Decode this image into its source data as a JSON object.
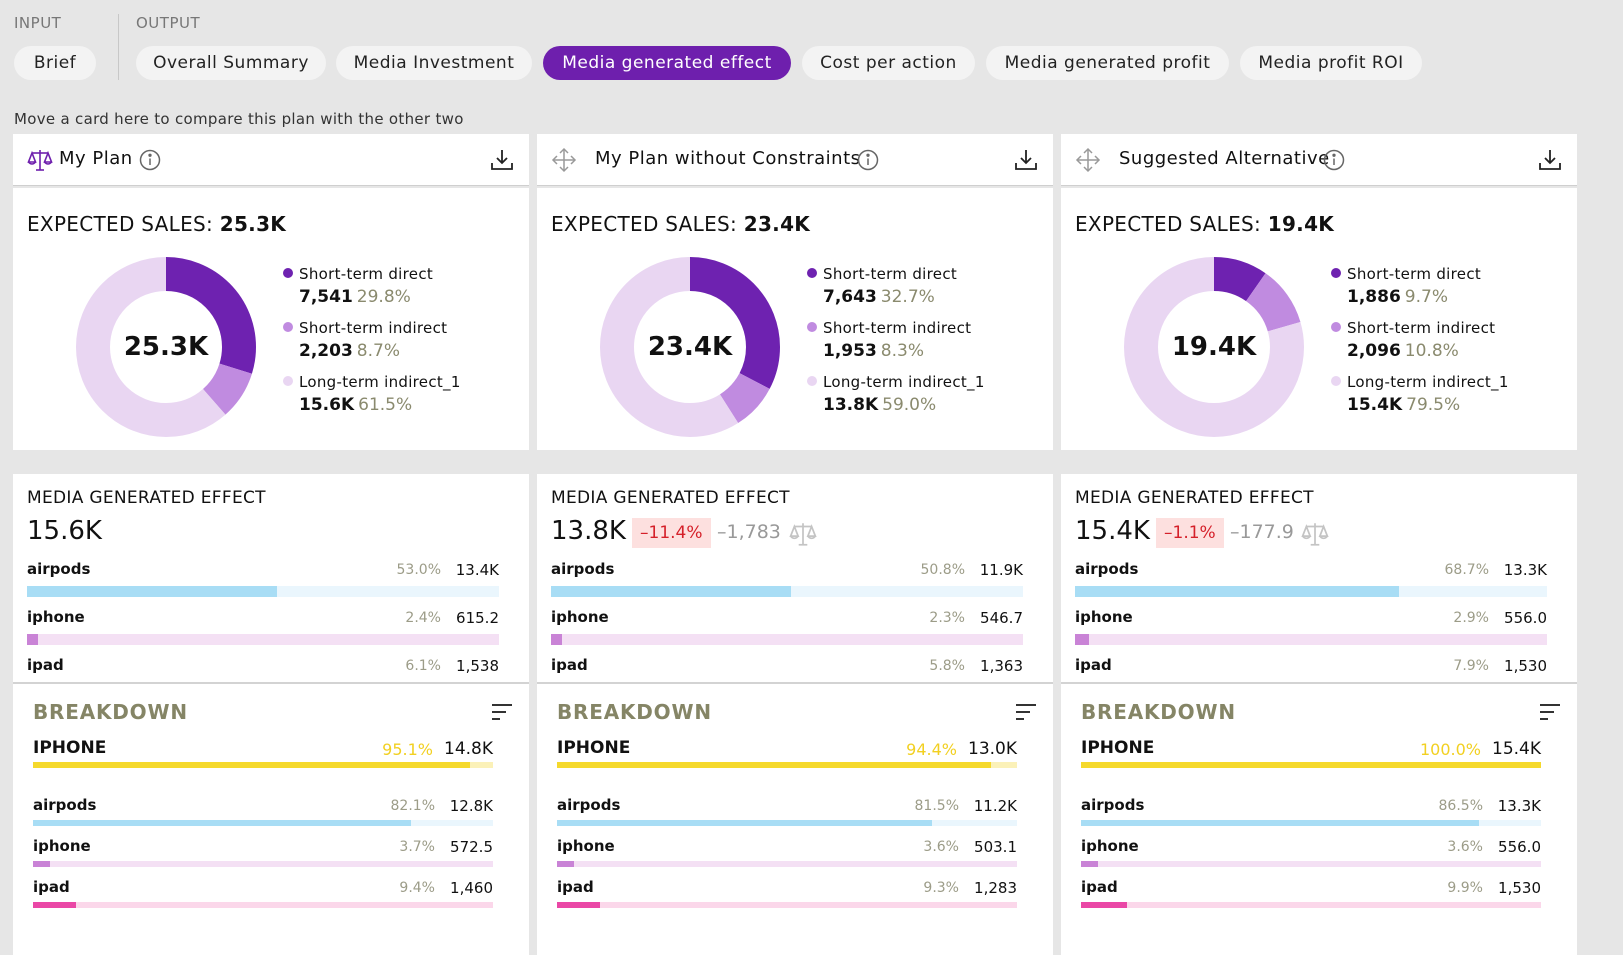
{
  "nav": {
    "input_label": "INPUT",
    "output_label": "OUTPUT",
    "tabs": [
      {
        "label": "Brief"
      },
      {
        "label": "Overall Summary"
      },
      {
        "label": "Media Investment"
      },
      {
        "label": "Media generated effect"
      },
      {
        "label": "Cost per action"
      },
      {
        "label": "Media generated profit"
      },
      {
        "label": "Media profit ROI"
      }
    ],
    "active_tab": "Media generated effect"
  },
  "hint": "Move a card here to compare this plan with the other two",
  "colors": {
    "accent": "#6e1fad",
    "short_direct": "#6e22b0",
    "short_indirect": "#c08be0",
    "long_indirect": "#e9d6f2",
    "airpods": "#a8ddf5",
    "iphone": "#c983d6",
    "ipad": "#ea47a6",
    "breakdown_header": "#f5d92c"
  },
  "plans": [
    {
      "title": "My Plan",
      "icon": "scale-icon",
      "expected_sales_label": "EXPECTED SALES:",
      "expected_sales": "25.3K",
      "donut_center": "25.3K",
      "segments": [
        {
          "name": "Short-term direct",
          "value": "7,541",
          "pct": "29.8%",
          "share": 29.8
        },
        {
          "name": "Short-term indirect",
          "value": "2,203",
          "pct": "8.7%",
          "share": 8.7
        },
        {
          "name": "Long-term indirect_1",
          "value": "15.6K",
          "pct": "61.5%",
          "share": 61.5
        }
      ],
      "mge_title": "MEDIA GENERATED EFFECT",
      "mge_value": "15.6K",
      "mge_delta": "",
      "mge_abs": "",
      "mge_rows": [
        {
          "name": "airpods",
          "pct": "53.0%",
          "value": "13.4K",
          "share": 53.0
        },
        {
          "name": "iphone",
          "pct": "2.4%",
          "value": "615.2",
          "share": 2.4
        },
        {
          "name": "ipad",
          "pct": "6.1%",
          "value": "1,538",
          "share": 6.1
        }
      ],
      "breakdown_title": "BREAKDOWN",
      "breakdown_header": {
        "name": "IPHONE",
        "pct": "95.1%",
        "value": "14.8K",
        "share": 95.1
      },
      "breakdown_rows": [
        {
          "name": "airpods",
          "pct": "82.1%",
          "value": "12.8K",
          "share": 82.1
        },
        {
          "name": "iphone",
          "pct": "3.7%",
          "value": "572.5",
          "share": 3.7
        },
        {
          "name": "ipad",
          "pct": "9.4%",
          "value": "1,460",
          "share": 9.4
        }
      ]
    },
    {
      "title": "My Plan without Constraints",
      "icon": "move-icon",
      "expected_sales_label": "EXPECTED SALES:",
      "expected_sales": "23.4K",
      "donut_center": "23.4K",
      "segments": [
        {
          "name": "Short-term direct",
          "value": "7,643",
          "pct": "32.7%",
          "share": 32.7
        },
        {
          "name": "Short-term indirect",
          "value": "1,953",
          "pct": "8.3%",
          "share": 8.3
        },
        {
          "name": "Long-term indirect_1",
          "value": "13.8K",
          "pct": "59.0%",
          "share": 59.0
        }
      ],
      "mge_title": "MEDIA GENERATED EFFECT",
      "mge_value": "13.8K",
      "mge_delta": "–11.4%",
      "mge_abs": "–1,783",
      "mge_rows": [
        {
          "name": "airpods",
          "pct": "50.8%",
          "value": "11.9K",
          "share": 50.8
        },
        {
          "name": "iphone",
          "pct": "2.3%",
          "value": "546.7",
          "share": 2.3
        },
        {
          "name": "ipad",
          "pct": "5.8%",
          "value": "1,363",
          "share": 5.8
        }
      ],
      "breakdown_title": "BREAKDOWN",
      "breakdown_header": {
        "name": "IPHONE",
        "pct": "94.4%",
        "value": "13.0K",
        "share": 94.4
      },
      "breakdown_rows": [
        {
          "name": "airpods",
          "pct": "81.5%",
          "value": "11.2K",
          "share": 81.5
        },
        {
          "name": "iphone",
          "pct": "3.6%",
          "value": "503.1",
          "share": 3.6
        },
        {
          "name": "ipad",
          "pct": "9.3%",
          "value": "1,283",
          "share": 9.3
        }
      ]
    },
    {
      "title": "Suggested Alternative",
      "icon": "move-icon",
      "expected_sales_label": "EXPECTED SALES:",
      "expected_sales": "19.4K",
      "donut_center": "19.4K",
      "segments": [
        {
          "name": "Short-term direct",
          "value": "1,886",
          "pct": "9.7%",
          "share": 9.7
        },
        {
          "name": "Short-term indirect",
          "value": "2,096",
          "pct": "10.8%",
          "share": 10.8
        },
        {
          "name": "Long-term indirect_1",
          "value": "15.4K",
          "pct": "79.5%",
          "share": 79.5
        }
      ],
      "mge_title": "MEDIA GENERATED EFFECT",
      "mge_value": "15.4K",
      "mge_delta": "–1.1%",
      "mge_abs": "–177.9",
      "mge_rows": [
        {
          "name": "airpods",
          "pct": "68.7%",
          "value": "13.3K",
          "share": 68.7
        },
        {
          "name": "iphone",
          "pct": "2.9%",
          "value": "556.0",
          "share": 2.9
        },
        {
          "name": "ipad",
          "pct": "7.9%",
          "value": "1,530",
          "share": 7.9
        }
      ],
      "breakdown_title": "BREAKDOWN",
      "breakdown_header": {
        "name": "IPHONE",
        "pct": "100.0%",
        "value": "15.4K",
        "share": 100.0
      },
      "breakdown_rows": [
        {
          "name": "airpods",
          "pct": "86.5%",
          "value": "13.3K",
          "share": 86.5
        },
        {
          "name": "iphone",
          "pct": "3.6%",
          "value": "556.0",
          "share": 3.6
        },
        {
          "name": "ipad",
          "pct": "9.9%",
          "value": "1,530",
          "share": 9.9
        }
      ]
    }
  ]
}
